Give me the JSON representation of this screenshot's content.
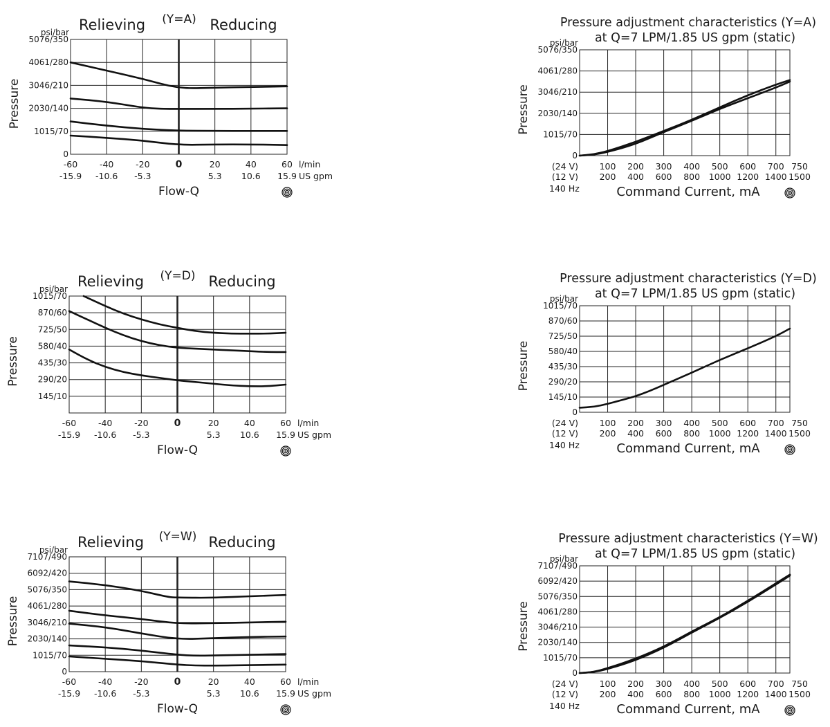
{
  "common": {
    "units_label": "psi/bar",
    "y_axis_label": "Pressure",
    "flow_x_label": "Flow-Q",
    "flow_unit_top": "l/min",
    "flow_unit_bottom": "US gpm",
    "relieving_label": "Relieving",
    "reducing_label": "Reducing",
    "current_x_label": "Command Current, mA",
    "current_row1_prefix": "(24 V)",
    "current_row2_prefix": "(12 V)",
    "frequency_label": "140 Hz",
    "subtitle": "at Q=7 LPM/1.85 US gpm (static)",
    "line_color": "#111111",
    "grid_color": "#222222"
  },
  "chart_data": [
    {
      "type": "line",
      "variant": "flow",
      "title": "(Y=A)",
      "xlabel": "Flow-Q",
      "ylabel": "Pressure",
      "x_ticks_lpm": [
        "-60",
        "-40",
        "-20",
        "0",
        "20",
        "40",
        "60"
      ],
      "x_ticks_gpm": [
        "-15.9",
        "-10.6",
        "-5.3",
        "",
        "5.3",
        "10.6",
        "15.9"
      ],
      "xlim": [
        -60,
        60
      ],
      "y_ticks": [
        "0",
        "1015/70",
        "2030/140",
        "3046/210",
        "4061/280",
        "5076/350"
      ],
      "ylim": [
        0,
        350
      ],
      "series": [
        {
          "x": [
            -60,
            -40,
            -20,
            0,
            20,
            40,
            60
          ],
          "values": [
            280,
            255,
            230,
            200,
            203,
            205,
            207
          ]
        },
        {
          "x": [
            -60,
            -40,
            -20,
            -10,
            0,
            20,
            40,
            60
          ],
          "values": [
            170,
            160,
            142,
            138,
            138,
            138,
            139,
            140
          ]
        },
        {
          "x": [
            -60,
            -40,
            -20,
            0,
            20,
            40,
            60
          ],
          "values": [
            100,
            87,
            77,
            72,
            71,
            71,
            71
          ]
        },
        {
          "x": [
            -60,
            -40,
            -20,
            0,
            20,
            40,
            60
          ],
          "values": [
            57,
            50,
            42,
            28,
            30,
            30,
            28
          ]
        }
      ]
    },
    {
      "type": "line",
      "variant": "current",
      "title": "Pressure adjustment characteristics (Y=A)",
      "subtitle": "at Q=7 LPM/1.85 US gpm (static)",
      "xlabel": "Command Current, mA",
      "ylabel": "Pressure",
      "x_ticks_24v": [
        "100",
        "200",
        "300",
        "400",
        "500",
        "600",
        "700",
        "750"
      ],
      "x_ticks_12v": [
        "200",
        "400",
        "600",
        "800",
        "1000",
        "1200",
        "1400",
        "1500"
      ],
      "xlim": [
        0,
        750
      ],
      "y_ticks": [
        "0",
        "1015/70",
        "2030/140",
        "3046/210",
        "4061/280",
        "5076/350"
      ],
      "ylim": [
        0,
        350
      ],
      "series": [
        {
          "x": [
            0,
            50,
            100,
            200,
            300,
            400,
            500,
            600,
            700,
            750
          ],
          "values": [
            0,
            4,
            15,
            45,
            82,
            118,
            160,
            200,
            235,
            250
          ]
        },
        {
          "x": [
            0,
            50,
            100,
            200,
            300,
            400,
            500,
            600,
            700,
            750
          ],
          "values": [
            0,
            3,
            12,
            38,
            78,
            115,
            155,
            190,
            225,
            245
          ]
        }
      ]
    },
    {
      "type": "line",
      "variant": "flow",
      "title": "(Y=D)",
      "xlabel": "Flow-Q",
      "ylabel": "Pressure",
      "x_ticks_lpm": [
        "-60",
        "-40",
        "-20",
        "0",
        "20",
        "40",
        "60"
      ],
      "x_ticks_gpm": [
        "-15.9",
        "-10.6",
        "-5.3",
        "",
        "5.3",
        "10.6",
        "15.9"
      ],
      "xlim": [
        -60,
        60
      ],
      "y_ticks": [
        "145/10",
        "290/20",
        "435/30",
        "580/40",
        "725/50",
        "870/60",
        "1015/70"
      ],
      "ylim": [
        0,
        70
      ],
      "series": [
        {
          "x": [
            -52,
            -40,
            -30,
            -20,
            -10,
            0,
            10,
            20,
            30,
            40,
            50,
            60
          ],
          "values": [
            70,
            64,
            59.5,
            56,
            53,
            51,
            49,
            48,
            47.5,
            47.5,
            47.5,
            48
          ]
        },
        {
          "x": [
            -60,
            -50,
            -40,
            -30,
            -20,
            -10,
            0,
            10,
            20,
            30,
            40,
            50,
            60
          ],
          "values": [
            61,
            56,
            51,
            46.5,
            43,
            40.5,
            39,
            38.5,
            38,
            37.5,
            37,
            36.5,
            36.5
          ]
        },
        {
          "x": [
            -60,
            -50,
            -40,
            -30,
            -20,
            -10,
            0,
            10,
            20,
            30,
            40,
            50,
            60
          ],
          "values": [
            38,
            32,
            27.5,
            24.5,
            22.5,
            21,
            19.5,
            18.5,
            17.5,
            16.5,
            16,
            16,
            17
          ]
        }
      ]
    },
    {
      "type": "line",
      "variant": "current",
      "title": "Pressure adjustment characteristics (Y=D)",
      "subtitle": "at Q=7 LPM/1.85 US gpm (static)",
      "xlabel": "Command Current, mA",
      "ylabel": "Pressure",
      "x_ticks_24v": [
        "100",
        "200",
        "300",
        "400",
        "500",
        "600",
        "700",
        "750"
      ],
      "x_ticks_12v": [
        "200",
        "400",
        "600",
        "800",
        "1000",
        "1200",
        "1400",
        "1500"
      ],
      "xlim": [
        0,
        750
      ],
      "y_ticks": [
        "0",
        "145/10",
        "290/20",
        "435/30",
        "580/40",
        "725/50",
        "870/60",
        "1015/70"
      ],
      "ylim": [
        0,
        70
      ],
      "series": [
        {
          "x": [
            0,
            50,
            100,
            150,
            200,
            250,
            300,
            400,
            500,
            600,
            700,
            750
          ],
          "values": [
            3,
            3.5,
            5.5,
            8,
            10.5,
            14,
            18,
            26,
            34.5,
            42,
            50,
            55
          ]
        }
      ]
    },
    {
      "type": "line",
      "variant": "flow",
      "title": "(Y=W)",
      "xlabel": "Flow-Q",
      "ylabel": "Pressure",
      "x_ticks_lpm": [
        "-60",
        "-40",
        "-20",
        "0",
        "20",
        "40",
        "60"
      ],
      "x_ticks_gpm": [
        "-15.9",
        "-10.6",
        "-5.3",
        "",
        "5.3",
        "10.6",
        "15.9"
      ],
      "xlim": [
        -60,
        60
      ],
      "y_ticks": [
        "0",
        "1015/70",
        "2030/140",
        "3046/210",
        "4061/280",
        "5076/350",
        "6092/420",
        "7107/490"
      ],
      "ylim": [
        0,
        490
      ],
      "series": [
        {
          "x": [
            -60,
            -40,
            -20,
            -5,
            0,
            20,
            40,
            60
          ],
          "values": [
            385,
            370,
            345,
            318,
            316,
            315,
            322,
            327
          ]
        },
        {
          "x": [
            -60,
            -40,
            -20,
            0,
            20,
            40,
            60
          ],
          "values": [
            260,
            240,
            225,
            205,
            207,
            210,
            213
          ]
        },
        {
          "x": [
            -60,
            -40,
            -20,
            0,
            20,
            40,
            60
          ],
          "values": [
            205,
            190,
            163,
            138,
            143,
            148,
            150
          ]
        },
        {
          "x": [
            -60,
            -40,
            -20,
            0,
            10,
            20,
            40,
            60
          ],
          "values": [
            112,
            104,
            90,
            72,
            68,
            69,
            72,
            75
          ]
        },
        {
          "x": [
            -60,
            -40,
            -20,
            0,
            10,
            20,
            40,
            60
          ],
          "values": [
            65,
            55,
            45,
            30,
            26,
            26,
            28,
            30
          ]
        }
      ]
    },
    {
      "type": "line",
      "variant": "current",
      "title": "Pressure adjustment characteristics (Y=W)",
      "subtitle": "at Q=7 LPM/1.85 US gpm (static)",
      "xlabel": "Command Current, mA",
      "ylabel": "Pressure",
      "x_ticks_24v": [
        "100",
        "200",
        "300",
        "400",
        "500",
        "600",
        "700",
        "750"
      ],
      "x_ticks_12v": [
        "200",
        "400",
        "600",
        "800",
        "1000",
        "1200",
        "1400",
        "1500"
      ],
      "xlim": [
        0,
        750
      ],
      "y_ticks": [
        "0",
        "1015/70",
        "2030/140",
        "3046/210",
        "4061/280",
        "5076/350",
        "6092/420",
        "7107/490"
      ],
      "ylim": [
        0,
        490
      ],
      "series": [
        {
          "x": [
            0,
            50,
            100,
            200,
            300,
            400,
            500,
            600,
            700,
            750
          ],
          "values": [
            0,
            5,
            22,
            65,
            120,
            190,
            255,
            330,
            410,
            450
          ]
        },
        {
          "x": [
            0,
            50,
            100,
            200,
            300,
            400,
            500,
            600,
            700,
            750
          ],
          "values": [
            0,
            4,
            18,
            58,
            115,
            185,
            252,
            325,
            405,
            445
          ]
        }
      ]
    }
  ]
}
